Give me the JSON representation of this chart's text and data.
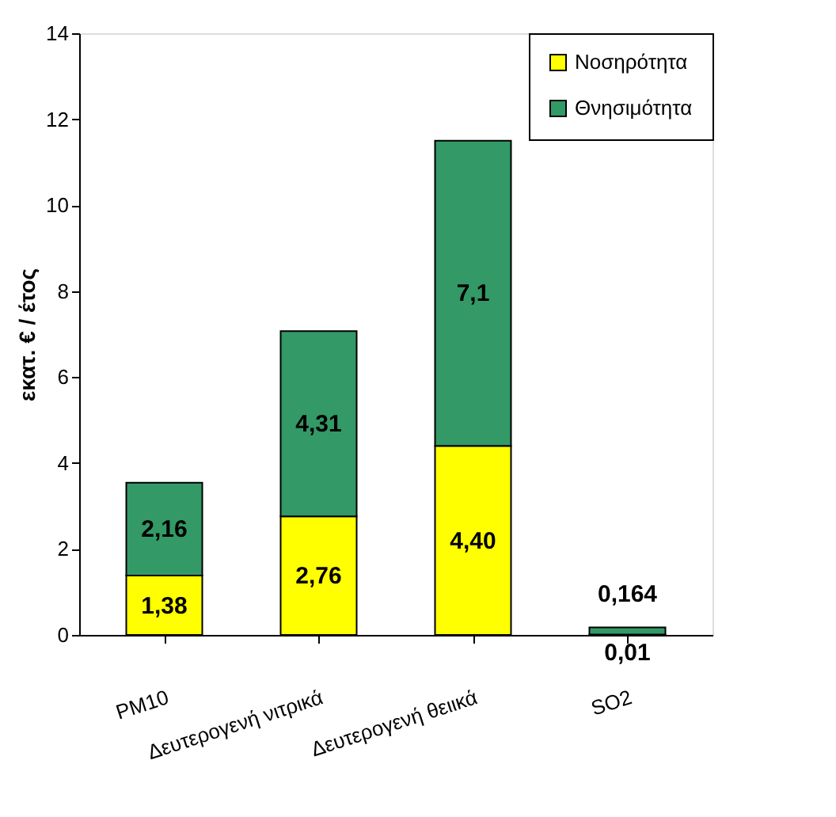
{
  "chart_data": {
    "type": "bar",
    "stacked": true,
    "ylabel": "εκατ. € / έτος",
    "categories": [
      "PM10",
      "Δευτερογενή νιτρικά",
      "Δευτερογενή θειικά",
      "SO2"
    ],
    "series": [
      {
        "name": "Νοσηρότητα",
        "color": "#ffff00",
        "values": [
          1.38,
          2.76,
          4.4,
          0.01
        ],
        "value_labels": [
          "1,38",
          "2,76",
          "4,40",
          "0,01"
        ]
      },
      {
        "name": "Θνησιμότητα",
        "color": "#339966",
        "values": [
          2.16,
          4.31,
          7.1,
          0.164
        ],
        "value_labels": [
          "2,16",
          "4,31",
          "7,1",
          "0,164"
        ]
      }
    ],
    "ylim": [
      0,
      14
    ],
    "yticks": [
      0,
      2,
      4,
      6,
      8,
      10,
      12,
      14
    ],
    "grid": false,
    "legend": "top right"
  }
}
